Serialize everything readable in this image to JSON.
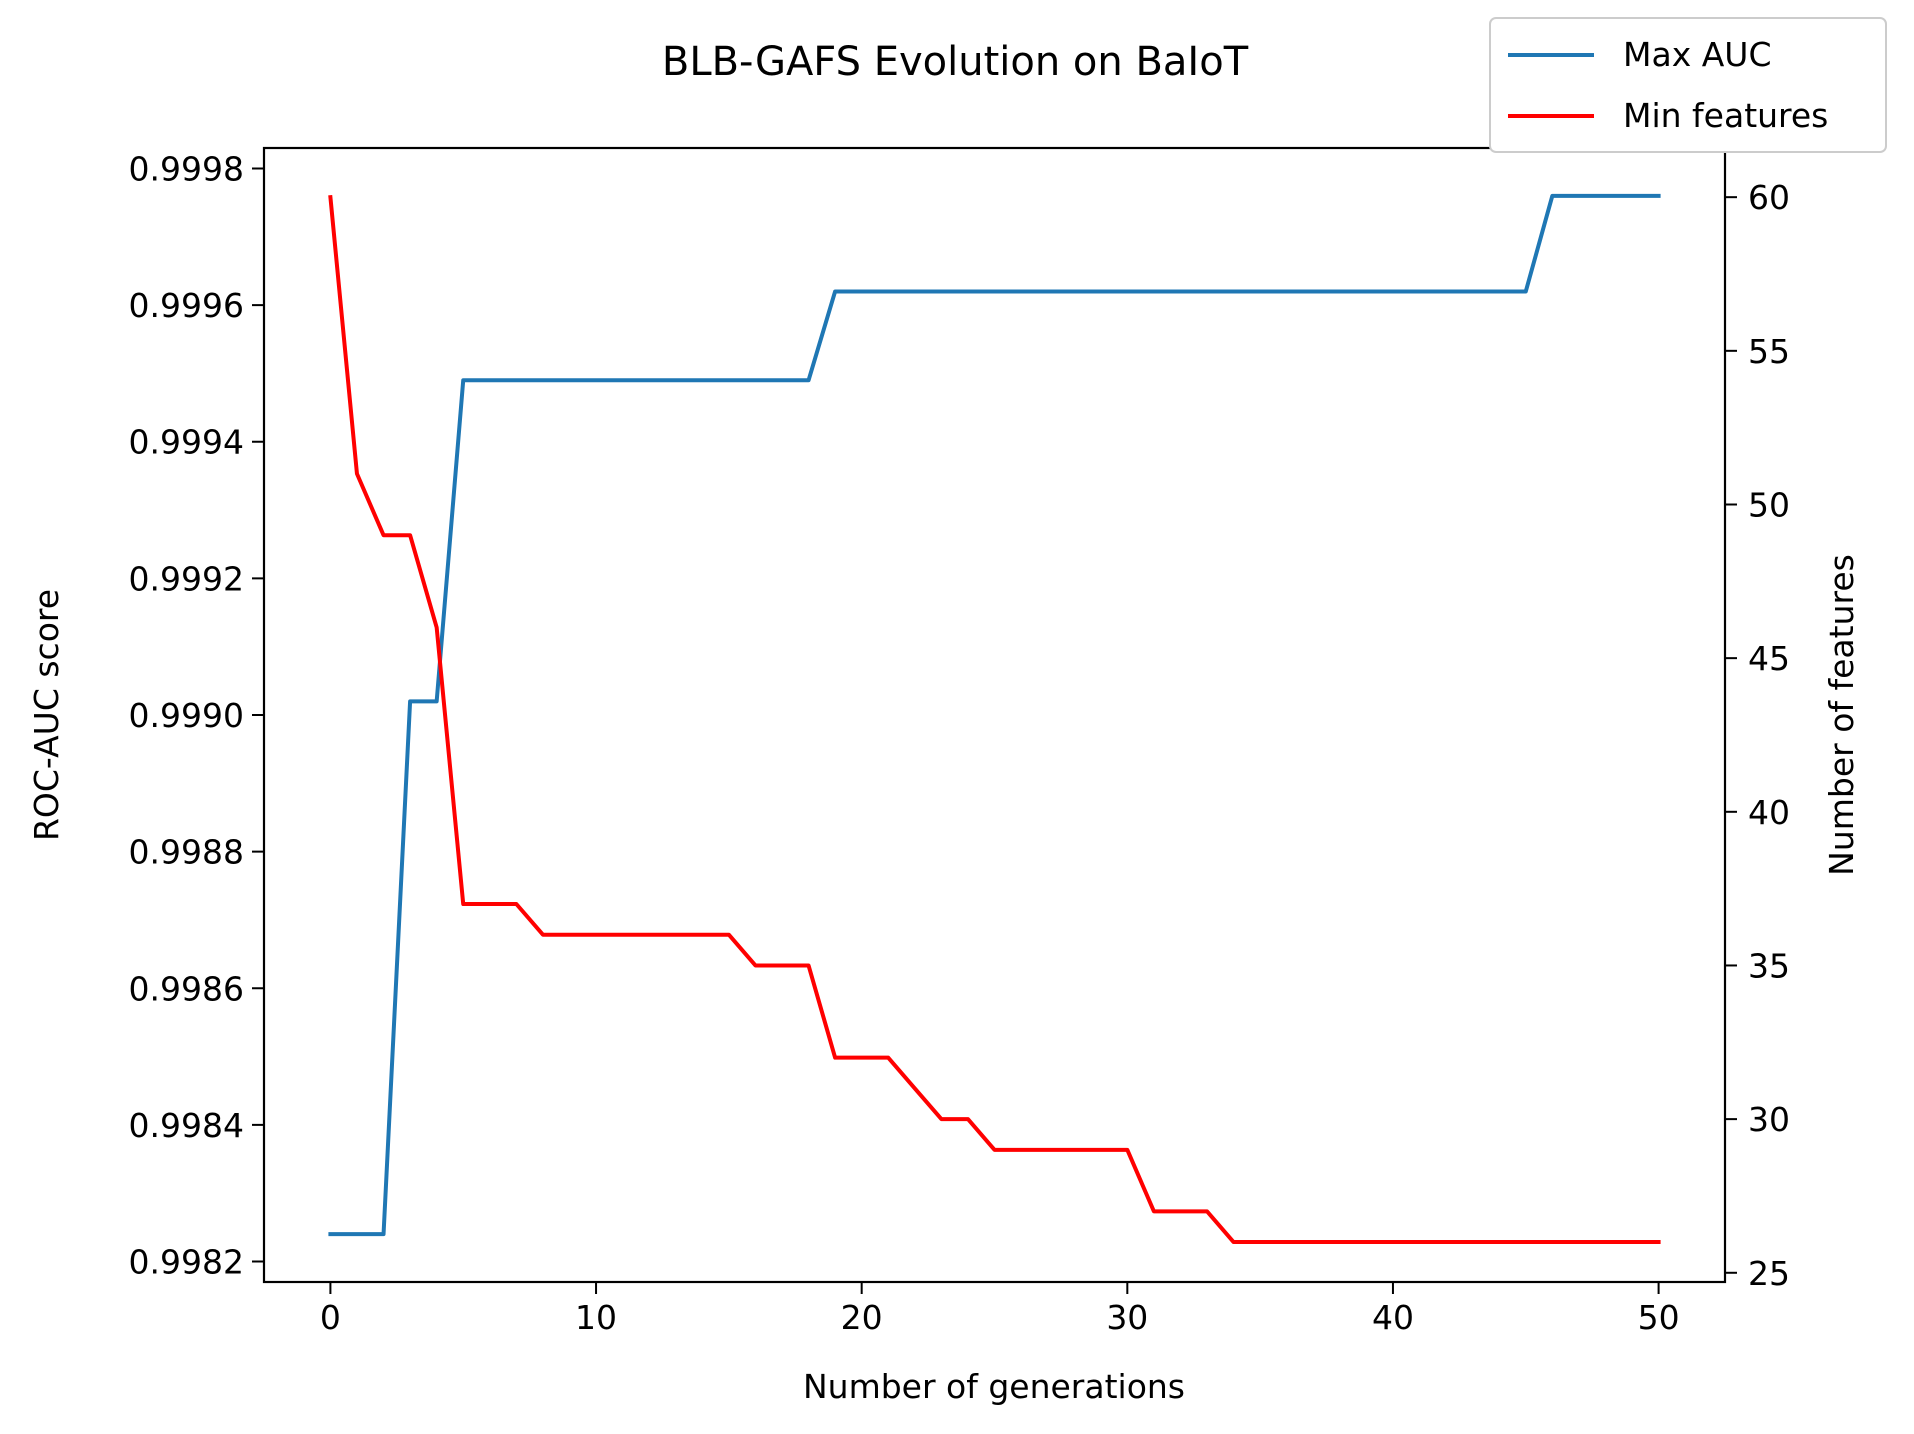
{
  "chart_data": {
    "type": "line",
    "title": "BLB-GAFS Evolution on BaIoT",
    "xlabel": "Number of generations",
    "ylabel_left": "ROC-AUC score",
    "ylabel_right": "Number of features",
    "x": [
      0,
      1,
      2,
      3,
      4,
      5,
      6,
      7,
      8,
      9,
      10,
      11,
      12,
      13,
      14,
      15,
      16,
      17,
      18,
      19,
      20,
      21,
      22,
      23,
      24,
      25,
      26,
      27,
      28,
      29,
      30,
      31,
      32,
      33,
      34,
      35,
      36,
      37,
      38,
      39,
      40,
      41,
      42,
      43,
      44,
      45,
      46,
      47,
      48,
      49,
      50
    ],
    "xlim": [
      -2.5,
      52.5
    ],
    "ylim_left": [
      0.99817,
      0.99983
    ],
    "ylim_right": [
      24.7,
      61.6
    ],
    "x_ticks": [
      0,
      10,
      20,
      30,
      40,
      50
    ],
    "y_ticks_left": [
      "0.9982",
      "0.9984",
      "0.9986",
      "0.9988",
      "0.9990",
      "0.9992",
      "0.9994",
      "0.9996",
      "0.9998"
    ],
    "y_ticks_right": [
      25,
      30,
      35,
      40,
      45,
      50,
      55,
      60
    ],
    "grid": false,
    "legend_position": "top-right",
    "series": [
      {
        "name": "Max AUC",
        "axis": "left",
        "color": "#1f77b4",
        "values": [
          0.99824,
          0.99824,
          0.99824,
          0.99902,
          0.99902,
          0.99949,
          0.99949,
          0.99949,
          0.99949,
          0.99949,
          0.99949,
          0.99949,
          0.99949,
          0.99949,
          0.99949,
          0.99949,
          0.99949,
          0.99949,
          0.99949,
          0.99962,
          0.99962,
          0.99962,
          0.99962,
          0.99962,
          0.99962,
          0.99962,
          0.99962,
          0.99962,
          0.99962,
          0.99962,
          0.99962,
          0.99962,
          0.99962,
          0.99962,
          0.99962,
          0.99962,
          0.99962,
          0.99962,
          0.99962,
          0.99962,
          0.99962,
          0.99962,
          0.99962,
          0.99962,
          0.99962,
          0.99962,
          0.99976,
          0.99976,
          0.99976,
          0.99976,
          0.99976
        ]
      },
      {
        "name": "Min features",
        "axis": "right",
        "color": "#ff0000",
        "values": [
          60,
          51,
          49,
          49,
          46,
          37,
          37,
          37,
          36,
          36,
          36,
          36,
          36,
          36,
          36,
          36,
          35,
          35,
          35,
          32,
          32,
          32,
          31,
          30,
          30,
          29,
          29,
          29,
          29,
          29,
          29,
          27,
          27,
          27,
          26,
          26,
          26,
          26,
          26,
          26,
          26,
          26,
          26,
          26,
          26,
          26,
          26,
          26,
          26,
          26,
          26
        ]
      }
    ]
  }
}
